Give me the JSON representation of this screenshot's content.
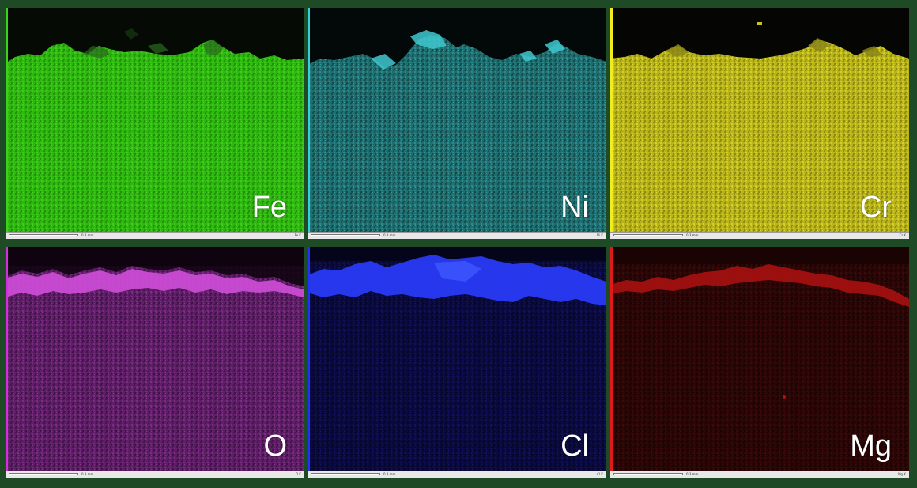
{
  "panels": [
    {
      "element": "Fe",
      "tag": "Fe K",
      "scale": "0.3 mm",
      "color": "#2fb80f",
      "dark": "#1f8a0a",
      "rich": "#47d41f",
      "edge": "#3bd21a"
    },
    {
      "element": "Ni",
      "tag": "Ni K",
      "scale": "0.3 mm",
      "color": "#1f6e70",
      "dark": "#174f51",
      "rich": "#39c6cc",
      "edge": "#2fd3d8"
    },
    {
      "element": "Cr",
      "tag": "Cr K",
      "scale": "0.3 mm",
      "color": "#b8b41a",
      "dark": "#8f8a12",
      "rich": "#d8d32a",
      "edge": "#f0ec1e"
    },
    {
      "element": "O",
      "tag": "O K",
      "scale": "0.3 mm",
      "color": "#5e1f66",
      "dark": "#3c1141",
      "rich": "#d04ed9",
      "edge": "#d62de0"
    },
    {
      "element": "Cl",
      "tag": "Cl K",
      "scale": "0.3 mm",
      "color": "#0a0a3e",
      "dark": "#060628",
      "rich": "#2a3cff",
      "edge": "#1f32ff"
    },
    {
      "element": "Mg",
      "tag": "Mg K",
      "scale": "0.3 mm",
      "color": "#2a0606",
      "dark": "#1a0303",
      "rich": "#b01212",
      "edge": "#e01a1a"
    }
  ]
}
